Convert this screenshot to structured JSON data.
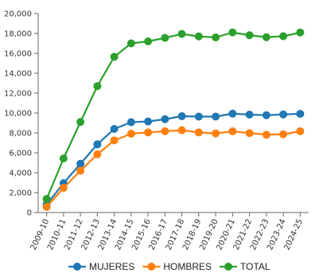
{
  "chart_data": {
    "type": "line",
    "title": "",
    "xlabel": "",
    "ylabel": "",
    "categories": [
      "2009-10",
      "2010-11",
      "2011-12",
      "2012-13",
      "2013-14",
      "2014-15",
      "2015-16",
      "2016-17",
      "2017-18",
      "2018-19",
      "2019-20",
      "2020-21",
      "2021-22",
      "2022-23",
      "2023-24",
      "2024-25"
    ],
    "ylim": [
      0,
      20000
    ],
    "yticks": [
      0,
      2000,
      4000,
      6000,
      8000,
      10000,
      12000,
      14000,
      16000,
      18000,
      20000
    ],
    "ytick_labels": [
      "0",
      "2,000",
      "4,000",
      "6,000",
      "8,000",
      "10,000",
      "12,000",
      "14,000",
      "16,000",
      "18,000",
      "20,000"
    ],
    "grid": "none",
    "legend_position": "bottom",
    "series": [
      {
        "name": "MUJERES",
        "color": "#1f77b4",
        "values": [
          800,
          2950,
          4900,
          6850,
          8400,
          9080,
          9150,
          9380,
          9680,
          9640,
          9640,
          9940,
          9840,
          9780,
          9860,
          9920
        ]
      },
      {
        "name": "HOMBRES",
        "color": "#ff7f0e",
        "values": [
          560,
          2480,
          4200,
          5850,
          7250,
          7920,
          8050,
          8170,
          8270,
          8050,
          7950,
          8160,
          7980,
          7820,
          7860,
          8170
        ]
      },
      {
        "name": "TOTAL",
        "color": "#2ca02c",
        "values": [
          1360,
          5430,
          9100,
          12700,
          15650,
          17000,
          17200,
          17550,
          17950,
          17700,
          17600,
          18100,
          17820,
          17620,
          17720,
          18090
        ]
      }
    ]
  }
}
